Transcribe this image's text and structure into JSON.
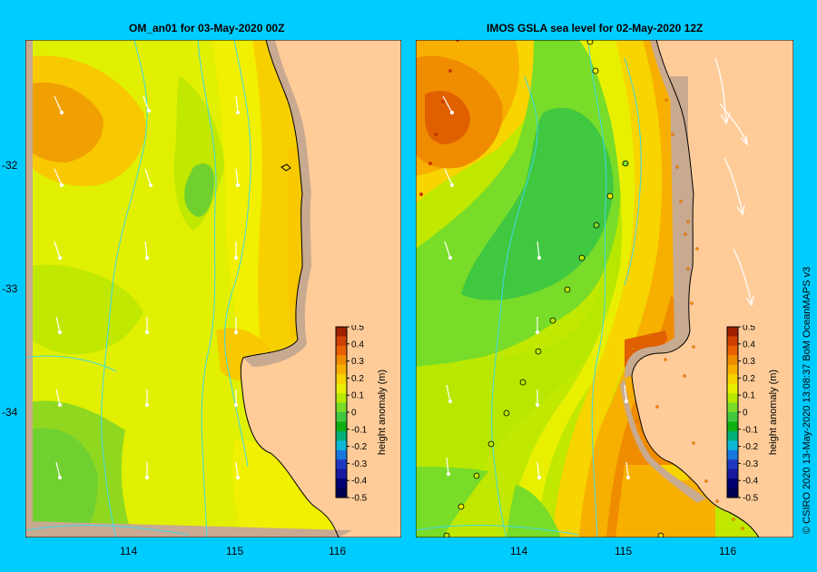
{
  "panels": [
    {
      "title": "OM_an01  for 03-May-2020 00Z"
    },
    {
      "title": "IMOS  GSLA sea level   for 02-May-2020 12Z"
    }
  ],
  "axes": {
    "lat_labels": [
      "-32",
      "-33",
      "-34"
    ],
    "lon_labels": [
      "114",
      "115",
      "116"
    ]
  },
  "colorbar": {
    "label": "height anomaly (m)",
    "ticks": [
      "0.5",
      "0.4",
      "0.3",
      "0.2",
      "0.1",
      "0",
      "-0.1",
      "-0.2",
      "-0.3",
      "-0.4",
      "-0.5"
    ],
    "colors": [
      "#a02000",
      "#d04000",
      "#e86000",
      "#f08c00",
      "#f8b000",
      "#f8d400",
      "#e8f000",
      "#b8e800",
      "#78dc28",
      "#40c840",
      "#10b010",
      "#00b078",
      "#10b8d8",
      "#1878e0",
      "#2038c0",
      "#1818a0",
      "#000070",
      "#000050"
    ]
  },
  "credit": "© CSIRO 2020   13-May-2020 13:08:37 BoM OceanMAPS v3",
  "colors": {
    "background": "#00ccff",
    "land": "#ffcc99",
    "shelf": "#c8aa90",
    "contour": "#40d8e8"
  }
}
